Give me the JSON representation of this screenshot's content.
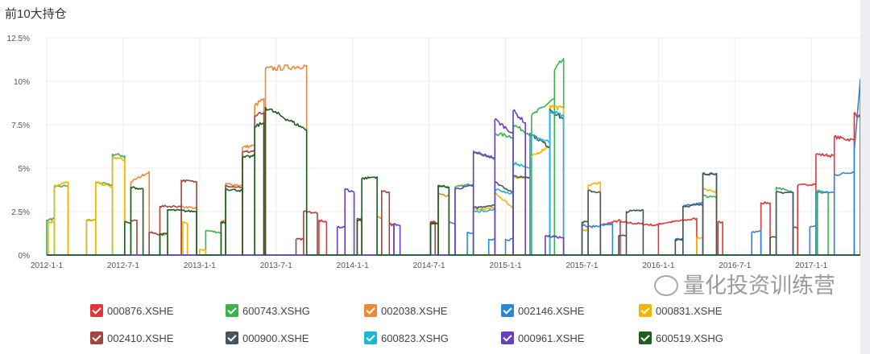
{
  "title": "前10大持仓",
  "watermark": "量化投资训练营",
  "chart_data": {
    "type": "line",
    "title": "前10大持仓",
    "xlabel": "",
    "ylabel": "",
    "xlim": [
      2012.0,
      2017.32
    ],
    "ylim": [
      0,
      12.5
    ],
    "y_ticks": [
      0,
      2.5,
      5,
      7.5,
      10,
      12.5
    ],
    "y_tick_labels": [
      "0%",
      "2.5%",
      "5%",
      "7.5%",
      "10%",
      "12.5%"
    ],
    "x_ticks": [
      2012.0,
      2012.5,
      2013.0,
      2013.5,
      2014.0,
      2014.5,
      2015.0,
      2015.5,
      2016.0,
      2016.5,
      2017.0
    ],
    "x_tick_labels": [
      "2012-1-1",
      "2012-7-1",
      "2013-1-1",
      "2013-7-1",
      "2014-1-1",
      "2014-7-1",
      "2015-1-1",
      "2015-7-1",
      "2016-1-1",
      "2016-7-1",
      "2017-1-1"
    ],
    "grid": true,
    "legend_position": "bottom",
    "segment_format": "[start_year, end_year, start_pct, end_pct]; zero elsewhere",
    "series": [
      {
        "name": "000876.XSHE",
        "color": "#e0363a",
        "segments": [
          [
            2013.78,
            2013.83,
            2.0,
            1.9
          ],
          [
            2014.51,
            2014.56,
            1.9,
            1.8
          ],
          [
            2015.62,
            2015.75,
            1.7,
            2.0
          ],
          [
            2015.75,
            2016.0,
            1.9,
            1.7
          ],
          [
            2016.0,
            2016.25,
            1.8,
            2.1
          ],
          [
            2016.39,
            2016.42,
            1.9,
            1.9
          ],
          [
            2016.67,
            2016.73,
            3.0,
            3.0
          ],
          [
            2016.88,
            2016.91,
            1.6,
            1.6
          ],
          [
            2016.91,
            2017.03,
            4.0,
            4.1
          ],
          [
            2017.03,
            2017.15,
            5.8,
            5.7
          ],
          [
            2017.15,
            2017.28,
            6.8,
            6.6
          ],
          [
            2017.28,
            2017.32,
            8.2,
            7.9
          ]
        ]
      },
      {
        "name": "600743.XSHG",
        "color": "#3cb44b",
        "segments": [
          [
            2012.0,
            2012.05,
            2.0,
            2.1
          ],
          [
            2012.05,
            2012.14,
            3.9,
            4.0
          ],
          [
            2012.26,
            2012.32,
            2.0,
            2.0
          ],
          [
            2012.32,
            2012.43,
            4.2,
            4.0
          ],
          [
            2012.43,
            2012.51,
            5.8,
            5.7
          ],
          [
            2013.04,
            2013.14,
            1.4,
            1.3
          ],
          [
            2014.56,
            2014.63,
            4.0,
            3.9
          ],
          [
            2014.67,
            2014.79,
            3.9,
            4.1
          ],
          [
            2014.79,
            2014.93,
            6.0,
            5.5
          ],
          [
            2014.93,
            2015.05,
            7.0,
            6.8
          ],
          [
            2015.05,
            2015.17,
            7.5,
            6.9
          ],
          [
            2015.17,
            2015.32,
            8.0,
            9.0
          ],
          [
            2015.32,
            2015.38,
            10.6,
            11.3
          ],
          [
            2016.29,
            2016.38,
            3.4,
            3.3
          ],
          [
            2016.77,
            2016.88,
            3.9,
            3.6
          ],
          [
            2017.04,
            2017.11,
            3.7,
            3.6
          ]
        ]
      },
      {
        "name": "002038.XSHE",
        "color": "#f0883a",
        "segments": [
          [
            2012.55,
            2012.67,
            4.2,
            4.8
          ],
          [
            2012.74,
            2012.79,
            1.2,
            1.2
          ],
          [
            2012.88,
            2012.98,
            2.8,
            2.7
          ],
          [
            2013.14,
            2013.17,
            1.9,
            2.0
          ],
          [
            2013.17,
            2013.28,
            4.1,
            4.0
          ],
          [
            2013.28,
            2013.36,
            6.2,
            6.3
          ],
          [
            2013.36,
            2013.42,
            8.6,
            9.0
          ],
          [
            2013.43,
            2013.7,
            10.7,
            10.9
          ],
          [
            2014.16,
            2014.19,
            2.2,
            2.1
          ],
          [
            2014.51,
            2014.56,
            1.8,
            1.8
          ],
          [
            2014.56,
            2014.63,
            3.5,
            3.4
          ]
        ]
      },
      {
        "name": "002146.XSHE",
        "color": "#2f86d6",
        "segments": [
          [
            2014.63,
            2014.67,
            1.9,
            1.8
          ],
          [
            2014.75,
            2014.79,
            1.3,
            1.3
          ],
          [
            2014.89,
            2014.93,
            0.9,
            0.9
          ],
          [
            2015.0,
            2015.05,
            0.9,
            0.9
          ],
          [
            2015.5,
            2015.54,
            1.8,
            1.6
          ],
          [
            2015.54,
            2015.7,
            1.6,
            1.8
          ],
          [
            2016.11,
            2016.16,
            0.9,
            0.9
          ],
          [
            2016.16,
            2016.29,
            2.8,
            3.0
          ],
          [
            2016.29,
            2016.38,
            4.7,
            4.6
          ],
          [
            2016.61,
            2016.67,
            1.3,
            1.4
          ],
          [
            2016.99,
            2017.03,
            1.6,
            1.7
          ],
          [
            2017.03,
            2017.15,
            3.6,
            3.6
          ],
          [
            2017.15,
            2017.28,
            4.6,
            4.8
          ],
          [
            2017.28,
            2017.32,
            6.0,
            10.1
          ]
        ]
      },
      {
        "name": "000831.XSHE",
        "color": "#f5b400",
        "segments": [
          [
            2012.01,
            2012.05,
            1.9,
            1.9
          ],
          [
            2012.05,
            2012.14,
            4.0,
            4.2
          ],
          [
            2012.26,
            2012.32,
            2.0,
            2.0
          ],
          [
            2012.32,
            2012.43,
            4.2,
            3.9
          ],
          [
            2012.43,
            2012.51,
            5.6,
            5.5
          ],
          [
            2012.89,
            2012.92,
            1.9,
            1.8
          ],
          [
            2013.0,
            2013.04,
            0.3,
            0.3
          ],
          [
            2014.79,
            2014.93,
            2.6,
            2.7
          ],
          [
            2014.93,
            2015.05,
            3.6,
            2.7
          ],
          [
            2015.05,
            2015.16,
            4.5,
            4.4
          ],
          [
            2015.16,
            2015.29,
            5.6,
            6.3
          ],
          [
            2015.29,
            2015.38,
            8.6,
            8.4
          ],
          [
            2015.5,
            2015.54,
            1.5,
            1.4
          ],
          [
            2015.54,
            2015.62,
            4.0,
            4.2
          ],
          [
            2016.25,
            2016.29,
            1.0,
            1.0
          ],
          [
            2016.29,
            2016.38,
            3.8,
            3.6
          ]
        ]
      },
      {
        "name": "002410.XSHE",
        "color": "#a0453f",
        "segments": [
          [
            2012.55,
            2012.59,
            2.0,
            2.0
          ],
          [
            2012.67,
            2012.74,
            1.3,
            1.2
          ],
          [
            2012.74,
            2012.88,
            2.8,
            2.8
          ],
          [
            2012.88,
            2012.98,
            4.3,
            4.2
          ],
          [
            2013.17,
            2013.28,
            4.0,
            3.9
          ],
          [
            2013.28,
            2013.36,
            5.9,
            6.0
          ],
          [
            2013.36,
            2013.42,
            8.0,
            8.2
          ],
          [
            2013.63,
            2013.68,
            0.9,
            0.9
          ],
          [
            2013.68,
            2013.77,
            2.5,
            2.4
          ],
          [
            2014.03,
            2014.06,
            2.1,
            2.0
          ],
          [
            2014.19,
            2014.24,
            3.7,
            3.6
          ],
          [
            2014.24,
            2014.27,
            1.8,
            1.7
          ],
          [
            2014.51,
            2014.54,
            1.9,
            1.9
          ]
        ]
      },
      {
        "name": "000900.XSHE",
        "color": "#455560",
        "segments": [
          [
            2014.79,
            2014.93,
            2.7,
            2.9
          ],
          [
            2014.93,
            2015.05,
            4.2,
            3.6
          ],
          [
            2015.05,
            2015.16,
            4.5,
            4.5
          ],
          [
            2015.16,
            2015.29,
            7.0,
            6.2
          ],
          [
            2015.29,
            2015.38,
            8.4,
            7.8
          ],
          [
            2015.5,
            2015.54,
            1.9,
            1.9
          ],
          [
            2015.54,
            2015.62,
            3.7,
            3.6
          ],
          [
            2015.74,
            2015.79,
            1.1,
            1.1
          ],
          [
            2015.79,
            2015.9,
            2.5,
            2.6
          ],
          [
            2016.11,
            2016.16,
            0.9,
            0.9
          ],
          [
            2016.16,
            2016.29,
            2.8,
            2.9
          ],
          [
            2016.29,
            2016.38,
            4.7,
            4.7
          ],
          [
            2016.73,
            2016.77,
            1.0,
            1.0
          ],
          [
            2016.77,
            2016.88,
            3.6,
            3.6
          ]
        ]
      },
      {
        "name": "600823.XSHG",
        "color": "#1ab8d6",
        "segments": [
          [
            2014.79,
            2014.93,
            2.5,
            2.6
          ],
          [
            2014.93,
            2015.05,
            3.8,
            3.5
          ],
          [
            2015.05,
            2015.16,
            5.3,
            5.0
          ],
          [
            2015.16,
            2015.29,
            6.9,
            6.5
          ],
          [
            2015.29,
            2015.38,
            8.3,
            8.0
          ]
        ]
      },
      {
        "name": "000961.XSHE",
        "color": "#6a3fbf",
        "segments": [
          [
            2013.9,
            2013.95,
            1.6,
            1.6
          ],
          [
            2013.95,
            2014.01,
            3.8,
            3.6
          ],
          [
            2014.27,
            2014.31,
            1.8,
            1.7
          ],
          [
            2014.67,
            2014.79,
            3.8,
            4.0
          ],
          [
            2014.79,
            2014.93,
            5.9,
            5.6
          ],
          [
            2014.93,
            2015.05,
            7.8,
            7.0
          ],
          [
            2015.05,
            2015.13,
            8.3,
            7.6
          ],
          [
            2015.26,
            2015.38,
            1.1,
            1.0
          ]
        ]
      },
      {
        "name": "600519.XSHG",
        "color": "#1e5e20",
        "segments": [
          [
            2012.51,
            2012.55,
            1.9,
            1.8
          ],
          [
            2012.55,
            2012.63,
            3.9,
            3.8
          ],
          [
            2012.74,
            2012.79,
            1.2,
            1.2
          ],
          [
            2012.79,
            2012.98,
            2.6,
            2.5
          ],
          [
            2013.14,
            2013.17,
            1.9,
            1.9
          ],
          [
            2013.17,
            2013.28,
            3.8,
            3.7
          ],
          [
            2013.28,
            2013.36,
            5.6,
            5.7
          ],
          [
            2013.36,
            2013.42,
            7.4,
            7.6
          ],
          [
            2013.43,
            2013.7,
            8.5,
            7.2
          ],
          [
            2014.03,
            2014.06,
            2.0,
            2.1
          ],
          [
            2014.06,
            2014.16,
            4.4,
            4.5
          ],
          [
            2014.51,
            2014.56,
            1.8,
            1.8
          ],
          [
            2014.56,
            2014.63,
            4.0,
            3.9
          ]
        ]
      }
    ]
  }
}
